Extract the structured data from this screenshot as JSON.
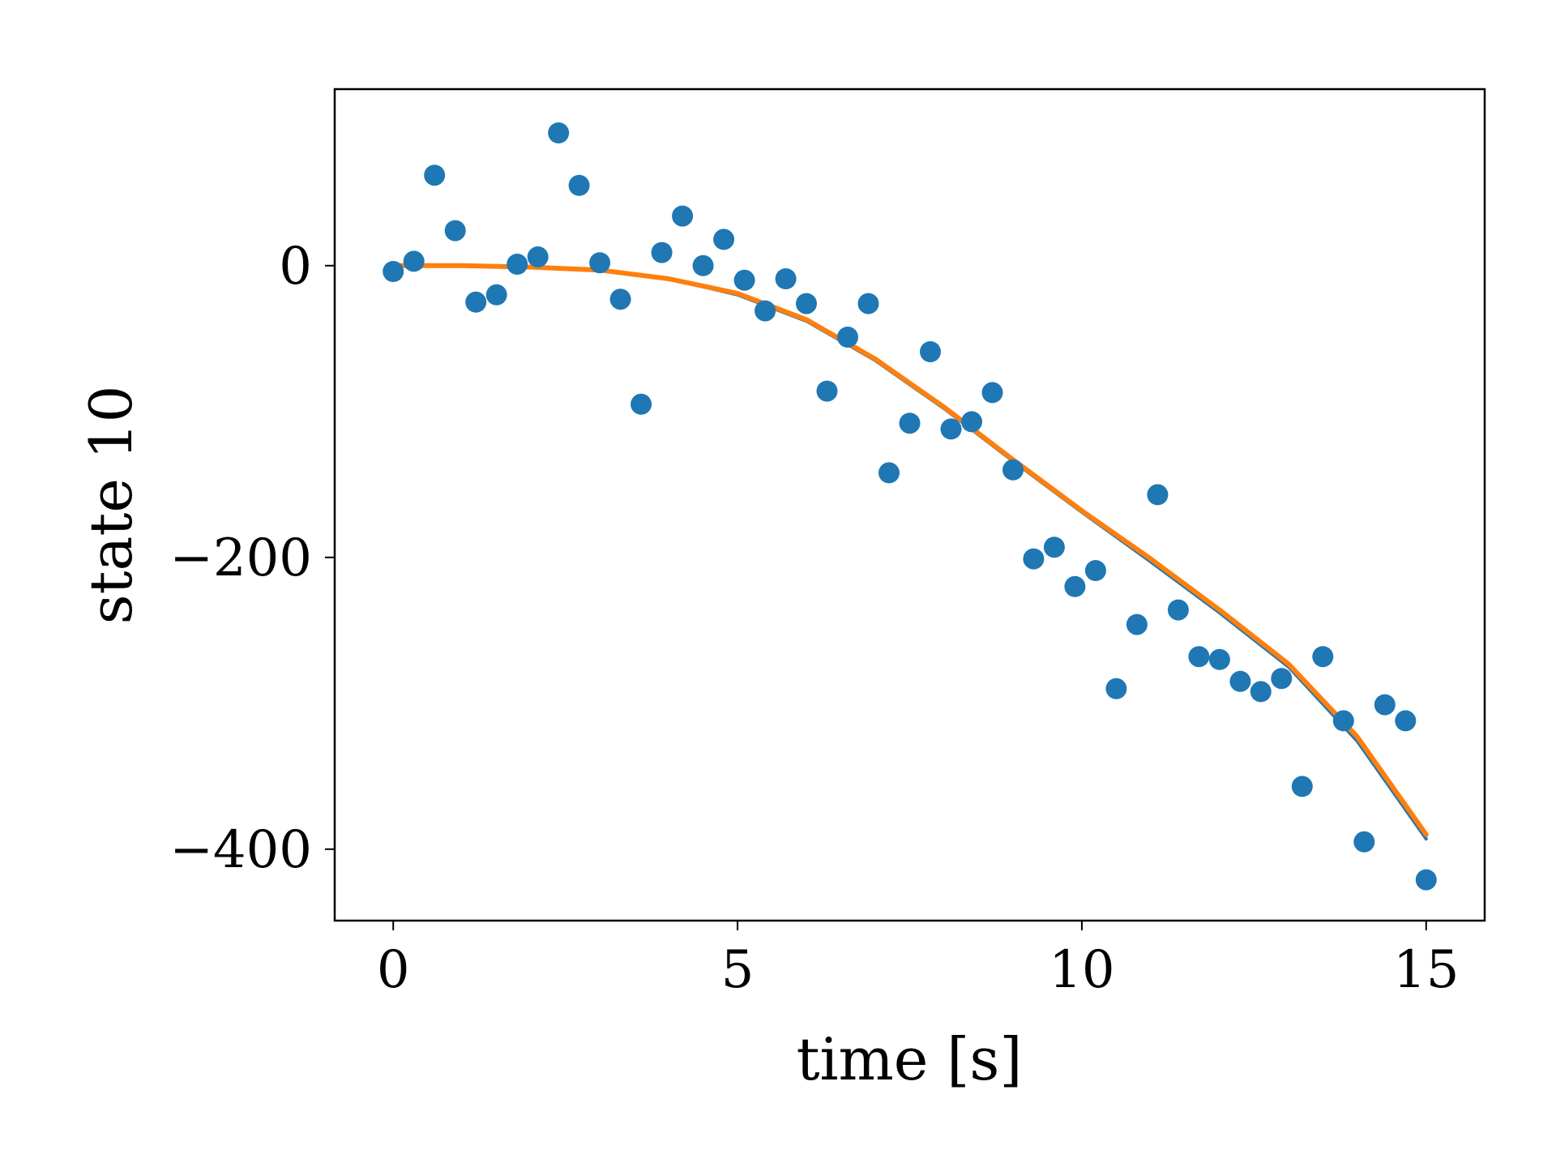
{
  "chart_data": {
    "type": "scatter",
    "xlabel": "time [s]",
    "ylabel": "state 10",
    "xlim": [
      -0.85,
      15.85
    ],
    "ylim": [
      -449,
      121
    ],
    "xticks": [
      {
        "value": 0,
        "label": "0"
      },
      {
        "value": 5,
        "label": "5"
      },
      {
        "value": 10,
        "label": "10"
      },
      {
        "value": 15,
        "label": "15"
      }
    ],
    "yticks": [
      {
        "value": 0,
        "label": "0"
      },
      {
        "value": -200,
        "label": "−200"
      },
      {
        "value": -400,
        "label": "−400"
      }
    ],
    "grid": false,
    "legend": "none",
    "colors": {
      "scatter": "#1f77b4",
      "line_blue": "#1f77b4",
      "line_orange": "#ff7f0e"
    },
    "series": [
      {
        "kind": "scatter",
        "color": "#1f77b4",
        "x": [
          0,
          0.3,
          0.6,
          0.9,
          1.2,
          1.5,
          1.8,
          2.1,
          2.4,
          2.7,
          3.0,
          3.3,
          3.6,
          3.9,
          4.2,
          4.5,
          4.8,
          5.1,
          5.4,
          5.7,
          6.0,
          6.3,
          6.6,
          6.9,
          7.2,
          7.5,
          7.8,
          8.1,
          8.4,
          8.7,
          9.0,
          9.3,
          9.6,
          9.9,
          10.2,
          10.5,
          10.8,
          11.1,
          11.4,
          11.7,
          12.0,
          12.3,
          12.6,
          12.9,
          13.2,
          13.5,
          13.8,
          14.1,
          14.4,
          14.7,
          15.0
        ],
        "y": [
          -4,
          3,
          62,
          24,
          -25,
          -20,
          1,
          6,
          91,
          55,
          2,
          -23,
          -95,
          9,
          34,
          0,
          18,
          -10,
          -31,
          -9,
          -26,
          -86,
          -49,
          -26,
          -142,
          -108,
          -59,
          -112,
          -107,
          -87,
          -140,
          -201,
          -193,
          -220,
          -209,
          -290,
          -246,
          -157,
          -236,
          -268,
          -270,
          -285,
          -292,
          -283,
          -357,
          -268,
          -312,
          -395,
          -301,
          -312,
          -421
        ]
      },
      {
        "kind": "line",
        "color": "#1f77b4",
        "x": [
          0,
          1,
          2,
          3,
          4,
          5,
          6,
          7,
          8,
          9,
          10,
          11,
          12,
          13,
          14,
          15
        ],
        "y": [
          0,
          0,
          -1,
          -3,
          -9,
          -20,
          -38,
          -65,
          -98,
          -134,
          -169,
          -203,
          -238,
          -275,
          -326,
          -393
        ]
      },
      {
        "kind": "line",
        "color": "#ff7f0e",
        "x": [
          0,
          1,
          2,
          3,
          4,
          5,
          6,
          7,
          8,
          9,
          10,
          11,
          12,
          13,
          14,
          15
        ],
        "y": [
          0,
          0,
          -1,
          -3,
          -9,
          -19,
          -37,
          -64,
          -97,
          -133,
          -168,
          -201,
          -236,
          -273,
          -323,
          -390
        ]
      }
    ]
  }
}
